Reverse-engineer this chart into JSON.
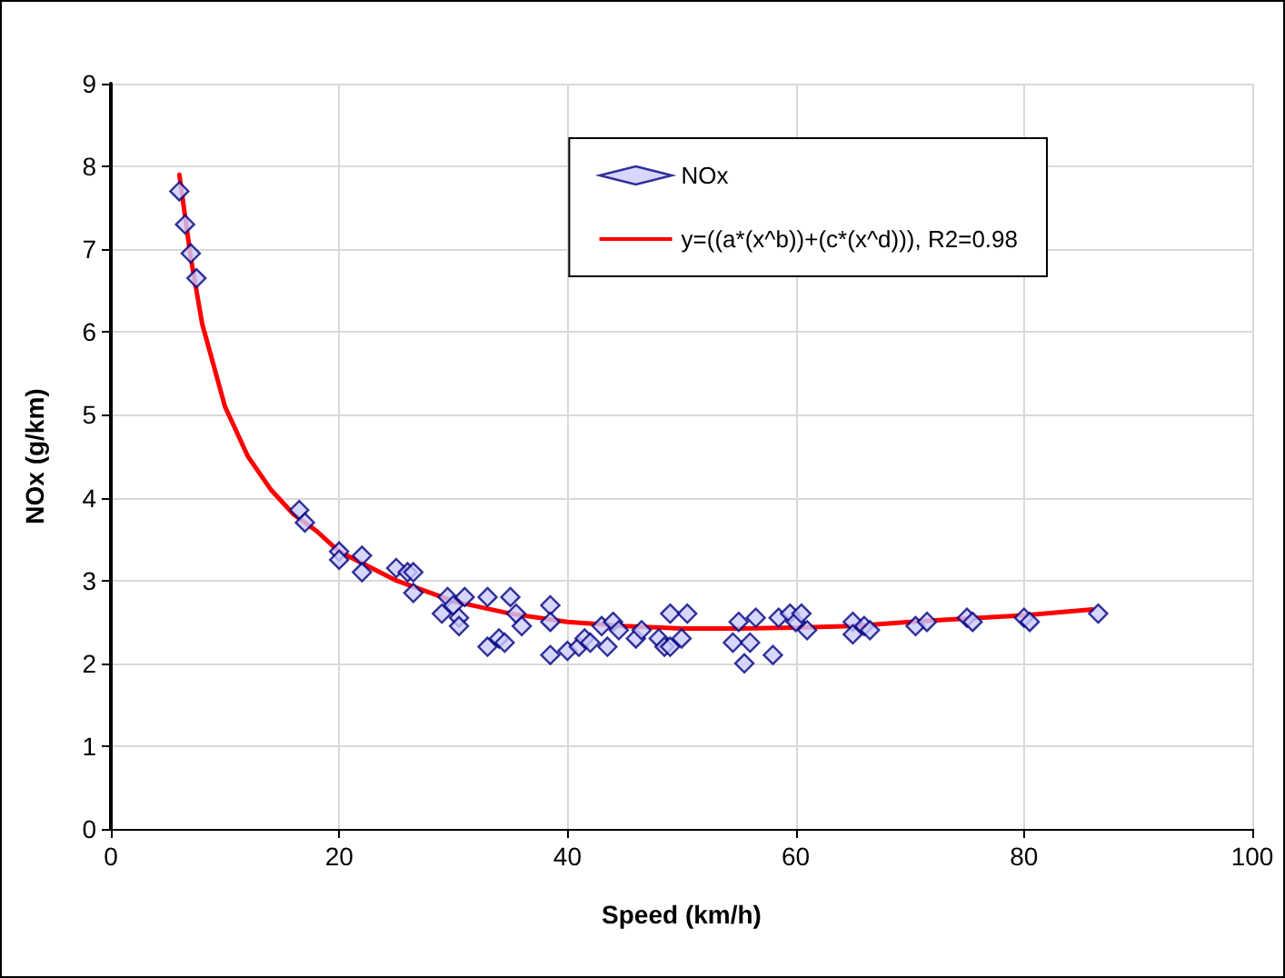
{
  "chart_data": {
    "type": "scatter",
    "xlabel": "Speed (km/h)",
    "ylabel": "NOx (g/km)",
    "xlim": [
      0,
      100
    ],
    "xticks": [
      0,
      20,
      40,
      60,
      80,
      100
    ],
    "ylim": [
      0,
      9
    ],
    "yticks": [
      0,
      1,
      2,
      3,
      4,
      5,
      6,
      7,
      8,
      9
    ],
    "grid": true,
    "legend": "top right",
    "series": [
      {
        "name": "NOx",
        "color": "#ccccff",
        "marker": "diamond",
        "x": [
          6,
          6.5,
          7,
          7.5,
          16.5,
          17,
          20,
          20,
          22,
          22,
          25,
          26,
          26.5,
          26.5,
          29,
          29.5,
          30,
          30.5,
          31,
          30.5,
          33,
          33,
          34,
          34.5,
          35,
          35.5,
          36,
          38.5,
          38.5,
          38.5,
          40,
          41,
          41.5,
          42,
          43,
          43.5,
          44,
          44.5,
          46,
          46.5,
          48,
          48.5,
          49,
          49,
          50,
          50.5,
          54.5,
          55,
          55.5,
          56,
          56.5,
          58,
          58.5,
          59.5,
          60,
          60.5,
          61,
          65,
          65,
          66,
          66.5,
          70.5,
          71.5,
          75,
          75.5,
          80,
          80.5,
          86.5
        ],
        "values": [
          7.7,
          7.3,
          6.95,
          6.65,
          3.85,
          3.7,
          3.35,
          3.25,
          3.3,
          3.1,
          3.15,
          3.1,
          3.1,
          2.85,
          2.6,
          2.8,
          2.7,
          2.55,
          2.8,
          2.45,
          2.8,
          2.2,
          2.3,
          2.25,
          2.8,
          2.6,
          2.45,
          2.7,
          2.5,
          2.1,
          2.15,
          2.2,
          2.3,
          2.25,
          2.45,
          2.2,
          2.5,
          2.4,
          2.3,
          2.4,
          2.3,
          2.2,
          2.6,
          2.2,
          2.3,
          2.6,
          2.25,
          2.5,
          2.0,
          2.25,
          2.55,
          2.1,
          2.55,
          2.6,
          2.5,
          2.6,
          2.4,
          2.5,
          2.35,
          2.45,
          2.4,
          2.45,
          2.5,
          2.55,
          2.5,
          2.55,
          2.5,
          2.6
        ]
      },
      {
        "name": "y=((a*(x^b))+(c*(x^d))), R2=0.98",
        "type": "line",
        "color": "#ff0000",
        "line_style": "solid",
        "marker": "none",
        "x": [
          6,
          7,
          8,
          10,
          12,
          14,
          16,
          18,
          20,
          25,
          30,
          35,
          40,
          45,
          50,
          55,
          60,
          65,
          70,
          75,
          80,
          86
        ],
        "values": [
          7.9,
          6.9,
          6.1,
          5.1,
          4.5,
          4.1,
          3.8,
          3.6,
          3.35,
          3.0,
          2.75,
          2.6,
          2.5,
          2.45,
          2.42,
          2.42,
          2.43,
          2.45,
          2.5,
          2.54,
          2.58,
          2.65
        ]
      }
    ]
  }
}
